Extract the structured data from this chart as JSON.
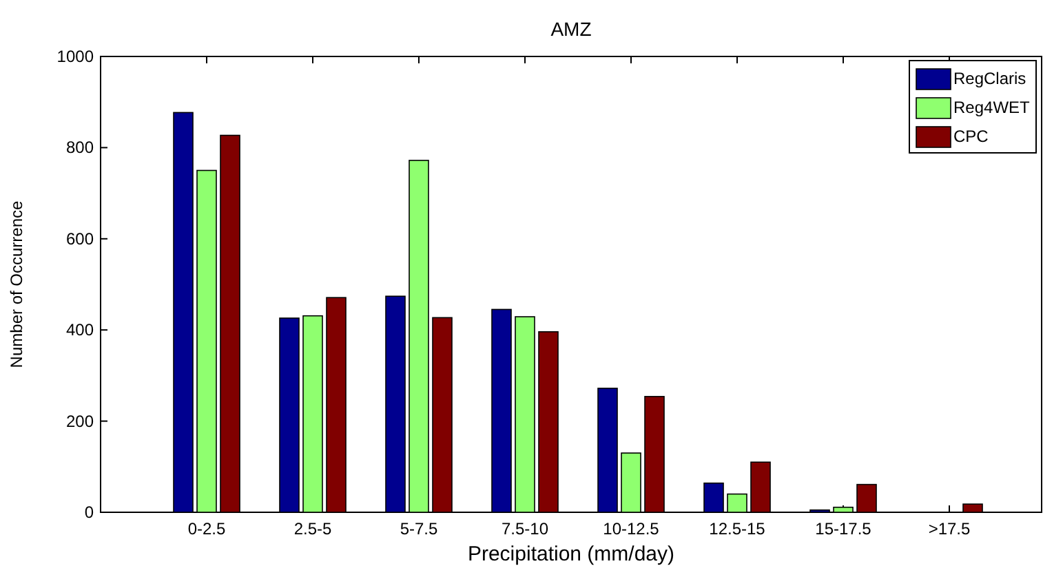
{
  "chart_data": {
    "type": "bar",
    "title": "AMZ",
    "xlabel": "Precipitation (mm/day)",
    "ylabel": "Number of Occurrence",
    "categories": [
      "0-2.5",
      "2.5-5",
      "5-7.5",
      "7.5-10",
      "10-12.5",
      "12.5-15",
      "15-17.5",
      ">17.5"
    ],
    "series": [
      {
        "name": "RegClaris",
        "color": "#00008f",
        "values": [
          877,
          426,
          474,
          445,
          272,
          64,
          5,
          0
        ]
      },
      {
        "name": "Reg4WET",
        "color": "#8fff6f",
        "values": [
          750,
          431,
          772,
          429,
          130,
          40,
          11,
          0
        ]
      },
      {
        "name": "CPC",
        "color": "#800000",
        "values": [
          827,
          471,
          427,
          396,
          254,
          110,
          61,
          18
        ]
      }
    ],
    "ylim": [
      0,
      1000
    ],
    "yticks": [
      0,
      200,
      400,
      600,
      800,
      1000
    ],
    "legend": "top right"
  }
}
